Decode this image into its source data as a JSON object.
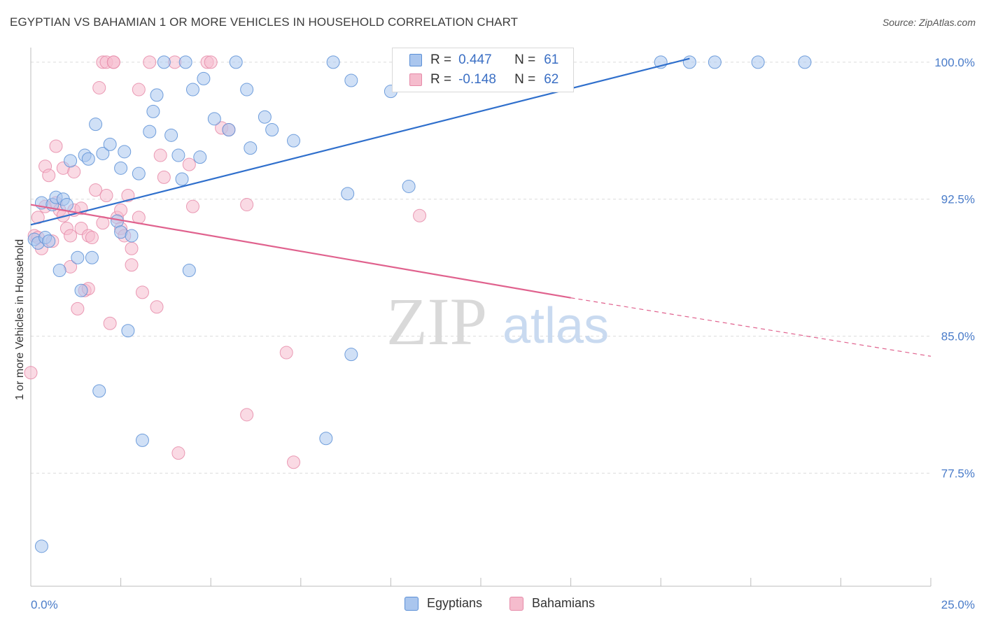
{
  "title": "EGYPTIAN VS BAHAMIAN 1 OR MORE VEHICLES IN HOUSEHOLD CORRELATION CHART",
  "source": "Source: ZipAtlas.com",
  "watermark": {
    "zip": "ZIP",
    "atlas": "atlas"
  },
  "legend": {
    "egyptians": {
      "r_label": "R =",
      "r_value": "0.447",
      "n_label": "N =",
      "n_value": "61"
    },
    "bahamians": {
      "r_label": "R =",
      "r_value": "-0.148",
      "n_label": "N =",
      "n_value": "62"
    }
  },
  "bottom_legend": {
    "egyptians": "Egyptians",
    "bahamians": "Bahamians"
  },
  "colors": {
    "egyptians_fill": "#aac6ee",
    "egyptians_stroke": "#5b8fd6",
    "egyptians_line": "#2f6fcc",
    "bahamians_fill": "#f5bccd",
    "bahamians_stroke": "#e68aa8",
    "bahamians_line": "#e0628e",
    "tick_label": "#4a7cc9",
    "grid": "#dcdcdc"
  },
  "chart_data": {
    "type": "scatter",
    "ylabel": "1 or more Vehicles in Household",
    "xlabel": "",
    "xlim": [
      0,
      25
    ],
    "ylim": [
      72,
      100.8
    ],
    "x_tick_labels": [
      {
        "value": 0,
        "label": "0.0%"
      },
      {
        "value": 25,
        "label": "25.0%"
      }
    ],
    "y_tick_labels": [
      {
        "value": 100,
        "label": "100.0%"
      },
      {
        "value": 92.5,
        "label": "92.5%"
      },
      {
        "value": 85,
        "label": "85.0%"
      },
      {
        "value": 77.5,
        "label": "77.5%"
      }
    ],
    "x_minor_ticks": [
      2.5,
      5,
      7.5,
      10,
      12.5,
      15,
      17.5,
      20,
      22.5,
      25
    ],
    "grid": true,
    "series": [
      {
        "name": "Egyptians",
        "color": "#5b8fd6",
        "trend": {
          "x": [
            0,
            18.3
          ],
          "y": [
            91.1,
            100.2
          ],
          "dashed_after": null
        },
        "points": [
          [
            0.1,
            90.3
          ],
          [
            0.2,
            90.1
          ],
          [
            0.3,
            92.3
          ],
          [
            0.4,
            90.4
          ],
          [
            0.5,
            90.2
          ],
          [
            0.6,
            92.2
          ],
          [
            0.7,
            92.6
          ],
          [
            0.8,
            88.6
          ],
          [
            0.9,
            92.5
          ],
          [
            1.0,
            92.2
          ],
          [
            1.1,
            94.6
          ],
          [
            1.3,
            89.3
          ],
          [
            1.4,
            87.5
          ],
          [
            1.5,
            94.9
          ],
          [
            1.6,
            94.7
          ],
          [
            1.7,
            89.3
          ],
          [
            1.8,
            96.6
          ],
          [
            1.9,
            82.0
          ],
          [
            2.0,
            95.0
          ],
          [
            2.2,
            95.5
          ],
          [
            2.4,
            91.3
          ],
          [
            2.5,
            90.7
          ],
          [
            2.5,
            94.2
          ],
          [
            2.6,
            95.1
          ],
          [
            2.7,
            85.3
          ],
          [
            2.8,
            90.5
          ],
          [
            3.0,
            93.9
          ],
          [
            3.1,
            79.3
          ],
          [
            3.3,
            96.2
          ],
          [
            3.4,
            97.3
          ],
          [
            3.5,
            98.2
          ],
          [
            3.7,
            100.0
          ],
          [
            3.9,
            96.0
          ],
          [
            4.1,
            94.9
          ],
          [
            4.2,
            93.6
          ],
          [
            4.3,
            100.0
          ],
          [
            4.4,
            88.6
          ],
          [
            4.5,
            98.5
          ],
          [
            4.7,
            94.8
          ],
          [
            4.8,
            99.1
          ],
          [
            5.1,
            96.9
          ],
          [
            5.5,
            96.3
          ],
          [
            5.7,
            100.0
          ],
          [
            6.0,
            98.5
          ],
          [
            6.1,
            95.3
          ],
          [
            6.5,
            97.0
          ],
          [
            6.7,
            96.3
          ],
          [
            7.3,
            95.7
          ],
          [
            8.2,
            79.4
          ],
          [
            8.4,
            100.0
          ],
          [
            8.8,
            92.8
          ],
          [
            8.9,
            84.0
          ],
          [
            8.9,
            99.0
          ],
          [
            10.0,
            98.4
          ],
          [
            10.5,
            93.2
          ],
          [
            13.0,
            100.0
          ],
          [
            17.5,
            100.0
          ],
          [
            18.3,
            100.0
          ],
          [
            19.0,
            100.0
          ],
          [
            20.2,
            100.0
          ],
          [
            21.5,
            100.0
          ],
          [
            0.3,
            73.5
          ]
        ]
      },
      {
        "name": "Bahamians",
        "color": "#e68aa8",
        "trend": {
          "x": [
            0,
            15.0
          ],
          "y": [
            92.2,
            87.1
          ],
          "dashed_to": [
            25,
            83.9
          ]
        },
        "points": [
          [
            0.0,
            83.0
          ],
          [
            0.1,
            90.5
          ],
          [
            0.2,
            90.4
          ],
          [
            0.2,
            91.5
          ],
          [
            0.3,
            89.8
          ],
          [
            0.4,
            92.1
          ],
          [
            0.4,
            94.3
          ],
          [
            0.5,
            93.8
          ],
          [
            0.6,
            90.2
          ],
          [
            0.7,
            92.3
          ],
          [
            0.7,
            95.4
          ],
          [
            0.8,
            91.9
          ],
          [
            0.9,
            91.6
          ],
          [
            0.9,
            94.2
          ],
          [
            1.0,
            90.9
          ],
          [
            1.1,
            88.8
          ],
          [
            1.1,
            90.5
          ],
          [
            1.2,
            91.9
          ],
          [
            1.2,
            94.0
          ],
          [
            1.3,
            86.5
          ],
          [
            1.4,
            90.9
          ],
          [
            1.4,
            92.0
          ],
          [
            1.5,
            87.5
          ],
          [
            1.6,
            87.6
          ],
          [
            1.6,
            90.5
          ],
          [
            1.7,
            90.4
          ],
          [
            1.8,
            93.0
          ],
          [
            1.9,
            98.6
          ],
          [
            2.0,
            100.0
          ],
          [
            2.0,
            91.2
          ],
          [
            2.1,
            92.7
          ],
          [
            2.1,
            100.0
          ],
          [
            2.2,
            85.7
          ],
          [
            2.3,
            100.0
          ],
          [
            2.4,
            91.5
          ],
          [
            2.5,
            91.9
          ],
          [
            2.5,
            90.9
          ],
          [
            2.6,
            90.5
          ],
          [
            2.7,
            92.7
          ],
          [
            2.8,
            89.8
          ],
          [
            2.8,
            88.9
          ],
          [
            3.0,
            98.5
          ],
          [
            3.0,
            91.5
          ],
          [
            3.1,
            87.4
          ],
          [
            3.3,
            100.0
          ],
          [
            3.5,
            86.6
          ],
          [
            3.6,
            94.9
          ],
          [
            3.7,
            93.7
          ],
          [
            4.0,
            100.0
          ],
          [
            4.1,
            78.6
          ],
          [
            4.4,
            94.4
          ],
          [
            4.5,
            92.1
          ],
          [
            4.9,
            100.0
          ],
          [
            5.0,
            100.0
          ],
          [
            5.3,
            96.4
          ],
          [
            5.5,
            96.3
          ],
          [
            6.0,
            92.2
          ],
          [
            6.0,
            80.7
          ],
          [
            7.1,
            84.1
          ],
          [
            7.3,
            78.1
          ],
          [
            10.8,
            91.6
          ],
          [
            2.3,
            100.0
          ]
        ]
      }
    ]
  }
}
